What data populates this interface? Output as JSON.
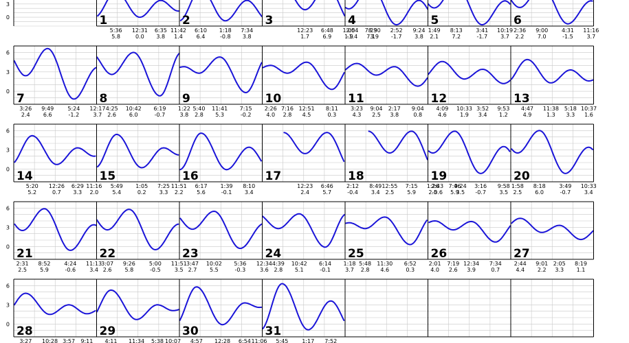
{
  "chart_data": {
    "type": "line",
    "title": "",
    "y_ticks": [
      0,
      3,
      6
    ],
    "ylim": [
      -2,
      7
    ],
    "grid": true,
    "line_color": "#1a14d8",
    "days": [
      {
        "day": "1",
        "extrema": [
          {
            "time": "5:36",
            "height": "5.8"
          },
          {
            "time": "12:31",
            "height": "0.0"
          },
          {
            "time": "6:35",
            "height": "3.8"
          },
          {
            "time": "11:42",
            "height": "1.4"
          }
        ]
      },
      {
        "day": "2",
        "extrema": [
          {
            "time": "6:10",
            "height": "6.4"
          },
          {
            "time": "1:18",
            "height": "-0.8"
          },
          {
            "time": "7:34",
            "height": "3.8"
          }
        ]
      },
      {
        "day": "3",
        "extrema": [
          {
            "time": "12:23",
            "height": "1.7"
          },
          {
            "time": "6:48",
            "height": "6.9"
          },
          {
            "time": "2:04",
            "height": "-1.4"
          },
          {
            "time": "8:30",
            "height": "3.9"
          }
        ]
      },
      {
        "day": "4",
        "extrema": [
          {
            "time": "1:05",
            "height": "1.9"
          },
          {
            "time": "7:29",
            "height": "7.1"
          },
          {
            "time": "2:52",
            "height": "-1.7"
          },
          {
            "time": "9:24",
            "height": "3.8"
          }
        ]
      },
      {
        "day": "5",
        "extrema": [
          {
            "time": "1:49",
            "height": "2.1"
          },
          {
            "time": "8:13",
            "height": "7.2"
          },
          {
            "time": "3:41",
            "height": "-1.7"
          },
          {
            "time": "10:19",
            "height": "3.7"
          }
        ]
      },
      {
        "day": "6",
        "extrema": [
          {
            "time": "2:36",
            "height": "2.2"
          },
          {
            "time": "9:00",
            "height": "7.0"
          },
          {
            "time": "4:31",
            "height": "-1.5"
          },
          {
            "time": "11:16",
            "height": "3.7"
          }
        ]
      },
      {
        "day": "7",
        "extrema": [
          {
            "time": "3:26",
            "height": "2.4"
          },
          {
            "time": "9:49",
            "height": "6.6"
          },
          {
            "time": "5:24",
            "height": "-1.2"
          },
          {
            "time": "12:17",
            "height": "3.7"
          }
        ]
      },
      {
        "day": "8",
        "extrema": [
          {
            "time": "4:25",
            "height": "2.6"
          },
          {
            "time": "10:42",
            "height": "6.0"
          },
          {
            "time": "6:19",
            "height": "-0.7"
          }
        ]
      },
      {
        "day": "9",
        "extrema": [
          {
            "time": "1:22",
            "height": "3.8"
          },
          {
            "time": "5:40",
            "height": "2.8"
          },
          {
            "time": "11:41",
            "height": "5.3"
          },
          {
            "time": "7:15",
            "height": "-0.2"
          }
        ]
      },
      {
        "day": "10",
        "extrema": [
          {
            "time": "2:26",
            "height": "4.0"
          },
          {
            "time": "7:16",
            "height": "2.8"
          },
          {
            "time": "12:51",
            "height": "4.5"
          },
          {
            "time": "8:11",
            "height": "0.3"
          }
        ]
      },
      {
        "day": "11",
        "extrema": [
          {
            "time": "3:23",
            "height": "4.3"
          },
          {
            "time": "9:04",
            "height": "2.5"
          },
          {
            "time": "2:17",
            "height": "3.8"
          },
          {
            "time": "9:04",
            "height": "0.8"
          }
        ]
      },
      {
        "day": "12",
        "extrema": [
          {
            "time": "4:09",
            "height": "4.6"
          },
          {
            "time": "10:33",
            "height": "1.9"
          },
          {
            "time": "3:52",
            "height": "3.4"
          },
          {
            "time": "9:53",
            "height": "1.2"
          }
        ]
      },
      {
        "day": "13",
        "extrema": [
          {
            "time": "4:47",
            "height": "4.9"
          },
          {
            "time": "11:38",
            "height": "1.3"
          },
          {
            "time": "5:18",
            "height": "3.3"
          },
          {
            "time": "10:37",
            "height": "1.6"
          }
        ]
      },
      {
        "day": "14",
        "extrema": [
          {
            "time": "5:20",
            "height": "5.2"
          },
          {
            "time": "12:26",
            "height": "0.7"
          },
          {
            "time": "6:29",
            "height": "3.3"
          },
          {
            "time": "11:16",
            "height": "2.0"
          }
        ]
      },
      {
        "day": "15",
        "extrema": [
          {
            "time": "5:49",
            "height": "5.4"
          },
          {
            "time": "1:05",
            "height": "0.2"
          },
          {
            "time": "7:25",
            "height": "3.3"
          },
          {
            "time": "11:51",
            "height": "2.2"
          }
        ]
      },
      {
        "day": "16",
        "extrema": [
          {
            "time": "6:17",
            "height": "5.6"
          },
          {
            "time": "1:39",
            "height": "-0.1"
          },
          {
            "time": "8:10",
            "height": "3.4"
          }
        ]
      },
      {
        "day": "17",
        "extrema": [
          {
            "time": "12:23",
            "height": "2.4"
          },
          {
            "time": "6:46",
            "height": "5.7"
          },
          {
            "time": "2:12",
            "height": "-0.4"
          },
          {
            "time": "8:49",
            "height": "3.4"
          }
        ]
      },
      {
        "day": "18",
        "extrema": [
          {
            "time": "12:55",
            "height": "2.5"
          },
          {
            "time": "7:15",
            "height": "5.9"
          },
          {
            "time": "2:43",
            "height": "-0.6"
          },
          {
            "time": "9:24",
            "height": "3.5"
          }
        ]
      },
      {
        "day": "19",
        "extrema": [
          {
            "time": "1:26",
            "height": "2.5"
          },
          {
            "time": "7:46",
            "height": "5.9"
          },
          {
            "time": "3:16",
            "height": "-0.7"
          },
          {
            "time": "9:58",
            "height": "3.5"
          }
        ]
      },
      {
        "day": "20",
        "extrema": [
          {
            "time": "1:58",
            "height": "2.5"
          },
          {
            "time": "8:18",
            "height": "6.0"
          },
          {
            "time": "3:49",
            "height": "-0.7"
          },
          {
            "time": "10:33",
            "height": "3.4"
          }
        ]
      },
      {
        "day": "21",
        "extrema": [
          {
            "time": "2:31",
            "height": "2.5"
          },
          {
            "time": "8:52",
            "height": "5.9"
          },
          {
            "time": "4:24",
            "height": "-0.6"
          },
          {
            "time": "11:13",
            "height": "3.4"
          }
        ]
      },
      {
        "day": "22",
        "extrema": [
          {
            "time": "3:07",
            "height": "2.6"
          },
          {
            "time": "9:26",
            "height": "5.8"
          },
          {
            "time": "5:00",
            "height": "-0.5"
          },
          {
            "time": "11:51",
            "height": "3.5"
          }
        ]
      },
      {
        "day": "23",
        "extrema": [
          {
            "time": "3:47",
            "height": "2.7"
          },
          {
            "time": "10:02",
            "height": "5.5"
          },
          {
            "time": "5:36",
            "height": "-0.3"
          },
          {
            "time": "12:34",
            "height": "3.6"
          }
        ]
      },
      {
        "day": "24",
        "extrema": [
          {
            "time": "4:39",
            "height": "2.8"
          },
          {
            "time": "10:42",
            "height": "5.1"
          },
          {
            "time": "6:14",
            "height": "-0.1"
          }
        ]
      },
      {
        "day": "25",
        "extrema": [
          {
            "time": "1:18",
            "height": "3.7"
          },
          {
            "time": "5:48",
            "height": "2.8"
          },
          {
            "time": "11:30",
            "height": "4.6"
          },
          {
            "time": "6:52",
            "height": "0.3"
          }
        ]
      },
      {
        "day": "26",
        "extrema": [
          {
            "time": "2:01",
            "height": "4.0"
          },
          {
            "time": "7:19",
            "height": "2.6"
          },
          {
            "time": "12:34",
            "height": "3.9"
          },
          {
            "time": "7:34",
            "height": "0.7"
          }
        ]
      },
      {
        "day": "27",
        "extrema": [
          {
            "time": "2:44",
            "height": "4.4"
          },
          {
            "time": "9:01",
            "height": "2.2"
          },
          {
            "time": "2:05",
            "height": "3.3"
          },
          {
            "time": "8:19",
            "height": "1.1"
          }
        ]
      },
      {
        "day": "28",
        "extrema": [
          {
            "time": "3:27",
            "height": "4.8"
          },
          {
            "time": "10:28",
            "height": "1.5"
          },
          {
            "time": "3:57",
            "height": "3.0"
          },
          {
            "time": "9:11",
            "height": "1.6"
          }
        ]
      },
      {
        "day": "29",
        "extrema": [
          {
            "time": "4:11",
            "height": "5.3"
          },
          {
            "time": "11:34",
            "height": "0.7"
          },
          {
            "time": "5:38",
            "height": "3.0"
          },
          {
            "time": "10:07",
            "height": "2.1"
          }
        ]
      },
      {
        "day": "30",
        "extrema": [
          {
            "time": "4:57",
            "height": "5.8"
          },
          {
            "time": "12:28",
            "height": "-0.1"
          },
          {
            "time": "6:54",
            "height": "3.3"
          },
          {
            "time": "11:06",
            "height": "2.6"
          }
        ]
      },
      {
        "day": "31",
        "extrema": [
          {
            "time": "5:45",
            "height": "6.3"
          },
          {
            "time": "1:17",
            "height": "-0.9"
          },
          {
            "time": "7:52",
            "height": "3.6"
          }
        ]
      }
    ]
  }
}
